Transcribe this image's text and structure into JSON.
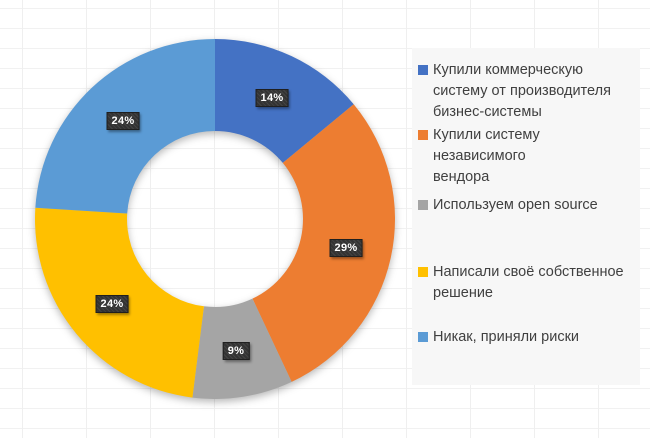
{
  "chart_data": {
    "type": "pie",
    "subtype": "donut",
    "title": "",
    "direction": "clockwise",
    "start_angle_deg": 0,
    "hole_ratio": 0.49,
    "legend_position": "right",
    "unit": "%",
    "slices": [
      {
        "value": 14,
        "display": "14%",
        "color": "#4472C4",
        "label": "Купили коммерческую систему от производителя бизнес-системы",
        "legend_lines": [
          "Купили коммерческую",
          "систему от производителя",
          "бизнес-системы"
        ]
      },
      {
        "value": 29,
        "display": "29%",
        "color": "#ED7D31",
        "label": "Купили систему независимого вендора",
        "legend_lines": [
          "Купили систему независимого",
          "вендора"
        ]
      },
      {
        "value": 9,
        "display": "9%",
        "color": "#A5A5A5",
        "label": "Используем open source",
        "legend_lines": [
          "Используем open source"
        ]
      },
      {
        "value": 24,
        "display": "24%",
        "color": "#FFC000",
        "label": "Написали своё собственное решение",
        "legend_lines": [
          "Написали своё собственное",
          "решение"
        ]
      },
      {
        "value": 24,
        "display": "24%",
        "color": "#5B9BD5",
        "label": "Никак, приняли риски",
        "legend_lines": [
          "Никак, приняли риски"
        ]
      }
    ],
    "label_style": {
      "background": "#333333",
      "text_color": "#ffffff"
    },
    "legend_text_color": "#404040",
    "legend_background": "#f7f7f7"
  }
}
